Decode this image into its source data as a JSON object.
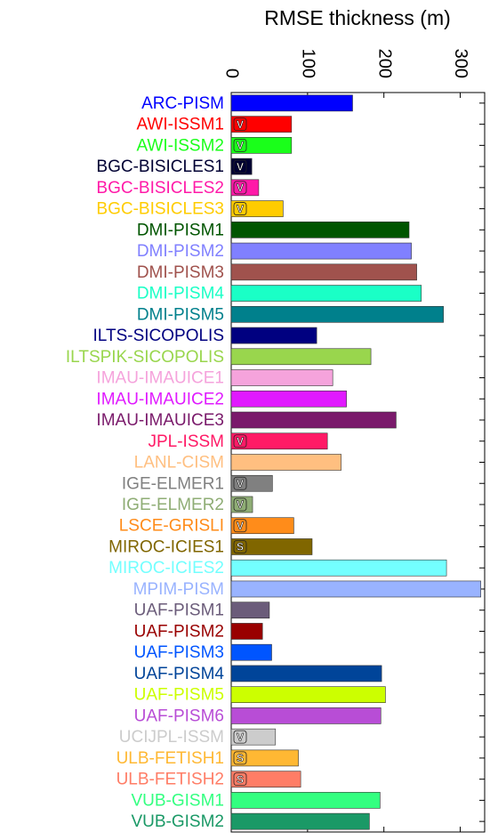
{
  "chart_data": {
    "type": "hbar",
    "xlabel": "RMSE thickness (m)",
    "categories": [
      "ARC-PISM",
      "AWI-ISSM1",
      "AWI-ISSM2",
      "BGC-BISICLES1",
      "BGC-BISICLES2",
      "BGC-BISICLES3",
      "DMI-PISM1",
      "DMI-PISM2",
      "DMI-PISM3",
      "DMI-PISM4",
      "DMI-PISM5",
      "ILTS-SICOPOLIS",
      "ILTSPIK-SICOPOLIS",
      "IMAU-IMAUICE1",
      "IMAU-IMAUICE2",
      "IMAU-IMAUICE3",
      "JPL-ISSM",
      "LANL-CISM",
      "IGE-ELMER1",
      "IGE-ELMER2",
      "LSCE-GRISLI",
      "MIROC-ICIES1",
      "MIROC-ICIES2",
      "MPIM-PISM",
      "UAF-PISM1",
      "UAF-PISM2",
      "UAF-PISM3",
      "UAF-PISM4",
      "UAF-PISM5",
      "UAF-PISM6",
      "UCIJPL-ISSM",
      "ULB-FETISH1",
      "ULB-FETISH2",
      "VUB-GISM1",
      "VUB-GISM2"
    ],
    "values": [
      159,
      79,
      79,
      27,
      36,
      68,
      233,
      236,
      243,
      249,
      278,
      112,
      183,
      133,
      151,
      216,
      126,
      144,
      54,
      28,
      82,
      106,
      282,
      327,
      50,
      41,
      53,
      197,
      202,
      196,
      58,
      88,
      91,
      195,
      181
    ],
    "bar_labels": [
      null,
      "V",
      "V",
      "V",
      "V",
      "V",
      null,
      null,
      null,
      null,
      null,
      null,
      null,
      null,
      null,
      null,
      "V",
      null,
      "V",
      "V",
      "V",
      "S",
      null,
      null,
      null,
      null,
      null,
      null,
      null,
      null,
      "V",
      "S",
      "S",
      null,
      null
    ],
    "colors": [
      "#0000ff",
      "#ff0000",
      "#1aff1a",
      "#000033",
      "#ff1aa8",
      "#ffcc00",
      "#005500",
      "#8080ff",
      "#a0524d",
      "#1affc6",
      "#00808c",
      "#000080",
      "#99d64d",
      "#f5a3dc",
      "#e01aff",
      "#7a1a6b",
      "#ff1a66",
      "#ffbf80",
      "#808080",
      "#8fad75",
      "#ff8c1a",
      "#806600",
      "#73ffff",
      "#99b3ff",
      "#6b5c7a",
      "#990000",
      "#0055ff",
      "#004499",
      "#ccff00",
      "#b84dd6",
      "#cccccc",
      "#ffb833",
      "#ff7d66",
      "#33ff80",
      "#1a9966"
    ],
    "xlim": [
      0,
      332
    ],
    "xticks": [
      0,
      100,
      200,
      300
    ]
  }
}
